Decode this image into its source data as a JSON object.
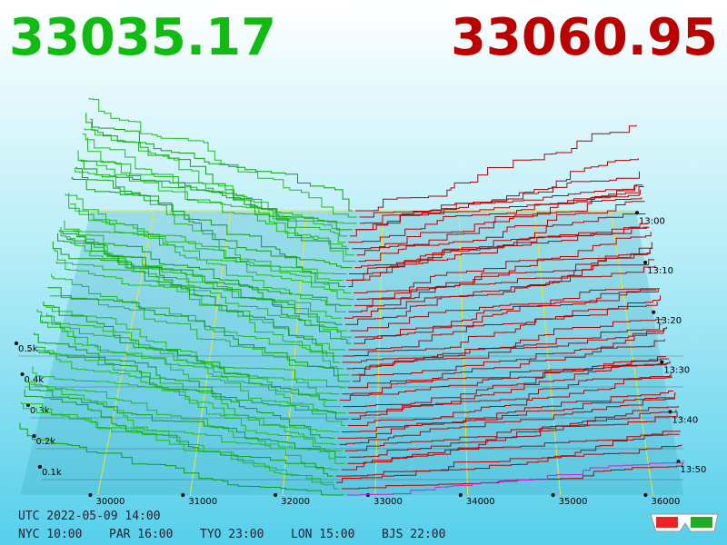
{
  "prices": {
    "bid": "33035.17",
    "ask": "33060.95"
  },
  "price_axis": [
    "30000",
    "31000",
    "32000",
    "33000",
    "34000",
    "35000",
    "36000"
  ],
  "depth_axis": [
    "0.1k",
    "0.2k",
    "0.3k",
    "0.4k",
    "0.5k"
  ],
  "time_axis": [
    "13:00",
    "13:10",
    "13:20",
    "13:30",
    "13:40",
    "13:50"
  ],
  "footer": {
    "utc": "UTC 2022-05-09 14:00",
    "zones": [
      "NYC 10:00",
      "PAR 16:00",
      "TYO 23:00",
      "LON 15:00",
      "BJS 22:00"
    ]
  }
}
